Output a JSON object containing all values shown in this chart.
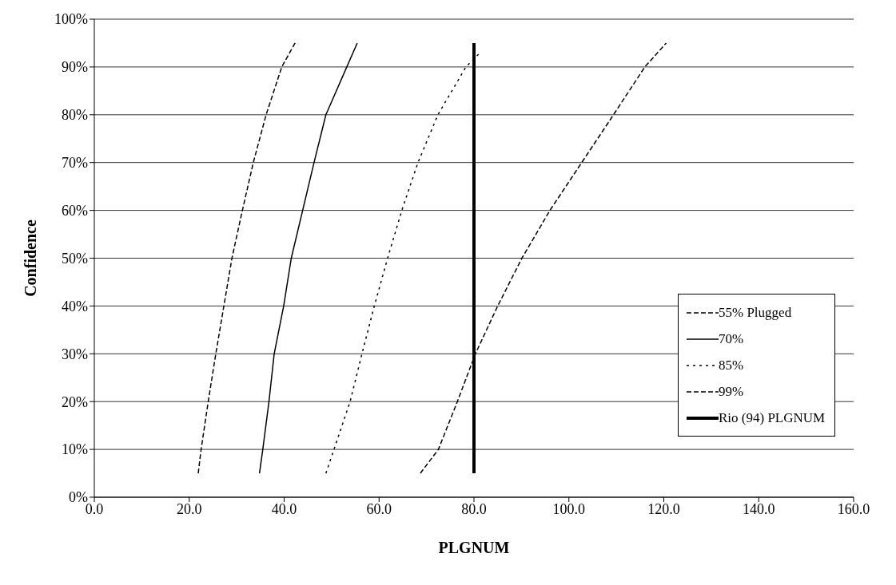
{
  "chart_data": {
    "type": "line",
    "xlabel": "PLGNUM",
    "ylabel": "Confidence",
    "xlim": [
      0,
      160
    ],
    "xticks": [
      {
        "value": 0,
        "label": "0.0"
      },
      {
        "value": 20,
        "label": "20.0"
      },
      {
        "value": 40,
        "label": "40.0"
      },
      {
        "value": 60,
        "label": "60.0"
      },
      {
        "value": 80,
        "label": "80.0"
      },
      {
        "value": 100,
        "label": "100.0"
      },
      {
        "value": 120,
        "label": "120.0"
      },
      {
        "value": 140,
        "label": "140.0"
      },
      {
        "value": 160,
        "label": "160.0"
      }
    ],
    "ylim": [
      0,
      100
    ],
    "yticks": [
      {
        "value": 0,
        "label": "0%"
      },
      {
        "value": 10,
        "label": "10%"
      },
      {
        "value": 20,
        "label": "20%"
      },
      {
        "value": 30,
        "label": "30%"
      },
      {
        "value": 40,
        "label": "40%"
      },
      {
        "value": 50,
        "label": "50%"
      },
      {
        "value": 60,
        "label": "60%"
      },
      {
        "value": 70,
        "label": "70%"
      },
      {
        "value": 80,
        "label": "80%"
      },
      {
        "value": 90,
        "label": "90%"
      },
      {
        "value": 100,
        "label": "100%"
      }
    ],
    "grid": "y",
    "legend": "bottom right",
    "marker": "none",
    "series": [
      {
        "name": "55% Plugged",
        "color": "#000000",
        "line_style": "dashed",
        "x": [
          21.9,
          22.5,
          24.0,
          25.6,
          27.3,
          29.0,
          31.2,
          33.5,
          36.2,
          39.5,
          42.3
        ],
        "values": [
          5,
          10,
          20,
          30,
          40,
          50,
          60,
          70,
          80,
          90,
          95
        ]
      },
      {
        "name": "70%",
        "color": "#000000",
        "line_style": "solid",
        "x": [
          34.8,
          35.5,
          36.8,
          37.9,
          39.9,
          41.5,
          43.9,
          46.3,
          48.8,
          53.2,
          55.4
        ],
        "values": [
          5,
          10,
          20,
          30,
          40,
          50,
          60,
          70,
          80,
          90,
          95
        ]
      },
      {
        "name": "85%",
        "color": "#000000",
        "line_style": "dotted",
        "x": [
          48.8,
          50.5,
          53.9,
          56.4,
          59.0,
          61.8,
          64.8,
          68.2,
          72.4,
          78.3,
          81.3
        ],
        "values": [
          5,
          10,
          20,
          30,
          40,
          50,
          60,
          70,
          80,
          90,
          93
        ]
      },
      {
        "name": "99%",
        "color": "#000000",
        "line_style": "dashed",
        "x": [
          68.7,
          72.5,
          76.5,
          80.3,
          85.0,
          90.1,
          96.0,
          102.7,
          109.4,
          116.0,
          120.5
        ],
        "values": [
          5,
          10,
          20,
          30,
          40,
          50,
          60,
          70,
          80,
          90,
          95
        ]
      },
      {
        "name": "Rio (94) PLGNUM",
        "color": "#000000",
        "line_style": "solid",
        "x": [
          80,
          80
        ],
        "values": [
          5,
          95
        ]
      }
    ]
  }
}
